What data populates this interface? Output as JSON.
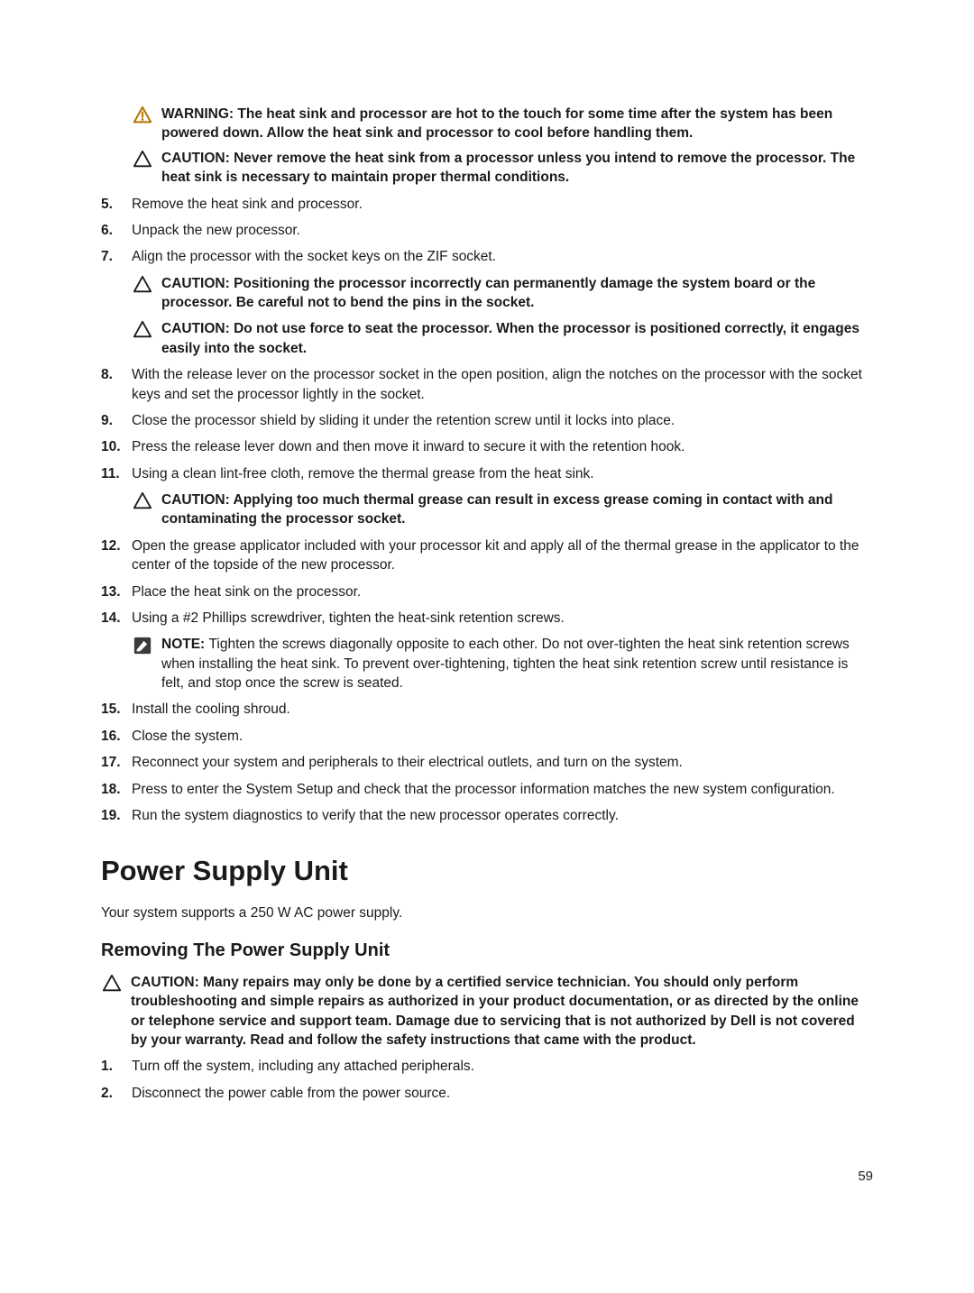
{
  "colors": {
    "text": "#1a1a1a",
    "warning_icon": "#b37400",
    "caution_icon": "#1a1a1a",
    "note_icon_bg": "#3b3b3b",
    "note_icon_fg": "#ffffff"
  },
  "labels": {
    "warning": "WARNING: ",
    "caution": "CAUTION: ",
    "note": "NOTE: "
  },
  "top_admonitions": [
    {
      "type": "warning",
      "text": "The heat sink and processor are hot to the touch for some time after the system has been powered down. Allow the heat sink and processor to cool before handling them."
    },
    {
      "type": "caution",
      "text": "Never remove the heat sink from a processor unless you intend to remove the processor. The heat sink is necessary to maintain proper thermal conditions."
    }
  ],
  "steps_a_start": 4,
  "steps_a": [
    {
      "text": "Remove the heat sink and processor."
    },
    {
      "text": "Unpack the new processor."
    },
    {
      "text": "Align the processor with the socket keys on the ZIF socket.",
      "admonitions": [
        {
          "type": "caution",
          "text": "Positioning the processor incorrectly can permanently damage the system board or the processor. Be careful not to bend the pins in the socket."
        },
        {
          "type": "caution",
          "text": "Do not use force to seat the processor. When the processor is positioned correctly, it engages easily into the socket."
        }
      ]
    },
    {
      "text": "With the release lever on the processor socket in the open position, align the notches on the processor with the socket keys and set the processor lightly in the socket."
    },
    {
      "text": "Close the processor shield by sliding it under the retention screw until it locks into place."
    },
    {
      "text": "Press the release lever down and then move it inward to secure it with the retention hook."
    },
    {
      "text": "Using a clean lint-free cloth, remove the thermal grease from the heat sink.",
      "admonitions": [
        {
          "type": "caution",
          "text": "Applying too much thermal grease can result in excess grease coming in contact with and contaminating the processor socket."
        }
      ]
    },
    {
      "text": "Open the grease applicator included with your processor kit and apply all of the thermal grease in the applicator to the center of the topside of the new processor."
    },
    {
      "text": "Place the heat sink on the processor."
    },
    {
      "text": "Using a #2 Phillips screwdriver, tighten the heat-sink retention screws.",
      "admonitions": [
        {
          "type": "note",
          "text": "Tighten the screws diagonally opposite to each other. Do not over-tighten the heat sink retention screws when installing the heat sink. To prevent over-tightening, tighten the heat sink retention screw until resistance is felt, and stop once the screw is seated."
        }
      ]
    },
    {
      "text": "Install the cooling shroud."
    },
    {
      "text": "Close the system."
    },
    {
      "text": "Reconnect your system and peripherals to their electrical outlets, and turn on the system."
    },
    {
      "text": "Press <F2> to enter the System Setup and check that the processor information matches the new system configuration."
    },
    {
      "text": "Run the system diagnostics to verify that the new processor operates correctly."
    }
  ],
  "section_title": "Power Supply Unit",
  "section_intro": "Your system supports a 250 W AC power supply.",
  "subsection_title": "Removing The Power Supply Unit",
  "subsection_caution": "Many repairs may only be done by a certified service technician. You should only perform troubleshooting and simple repairs as authorized in your product documentation, or as directed by the online or telephone service and support team. Damage due to servicing that is not authorized by Dell is not covered by your warranty. Read and follow the safety instructions that came with the product.",
  "steps_b_start": 0,
  "steps_b": [
    {
      "text": "Turn off the system, including any attached peripherals."
    },
    {
      "text": "Disconnect the power cable from the power source."
    }
  ],
  "page_number": "59"
}
